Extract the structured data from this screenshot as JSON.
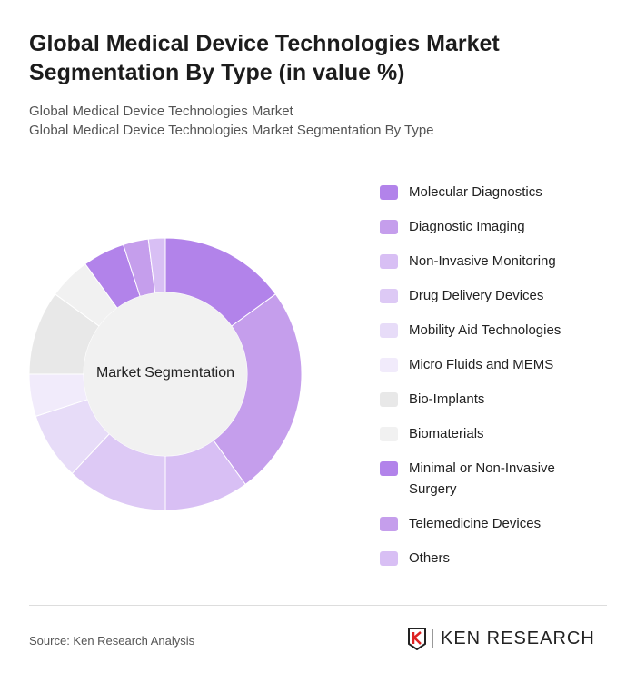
{
  "title": "Global Medical Device Technologies Market Segmentation By Type (in value %)",
  "subtitles": [
    "Global Medical Device Technologies Market",
    "Global Medical Device Technologies Market Segmentation By Type"
  ],
  "source": "Source: Ken Research Analysis",
  "logo_text": "KEN RESEARCH",
  "chart_data": {
    "type": "pie",
    "variant": "donut",
    "center_label": "Market Segmentation",
    "legend_position": "right",
    "categories": [
      "Molecular Diagnostics",
      "Diagnostic Imaging",
      "Non-Invasive Monitoring",
      "Drug Delivery Devices",
      "Mobility Aid Technologies",
      "Micro Fluids and MEMS",
      "Bio-Implants",
      "Biomaterials",
      "Minimal or Non-Invasive Surgery",
      "Telemedicine Devices",
      "Others"
    ],
    "values": [
      15,
      25,
      10,
      12,
      8,
      5,
      10,
      5,
      5,
      3,
      2
    ],
    "colors": [
      "#b283ea",
      "#c59eec",
      "#d8bff4",
      "#ddc9f5",
      "#e7dcf8",
      "#f1ebfb",
      "#e8e8e8",
      "#f1f1f1",
      "#b283ea",
      "#c59eec",
      "#d8bff4"
    ]
  }
}
